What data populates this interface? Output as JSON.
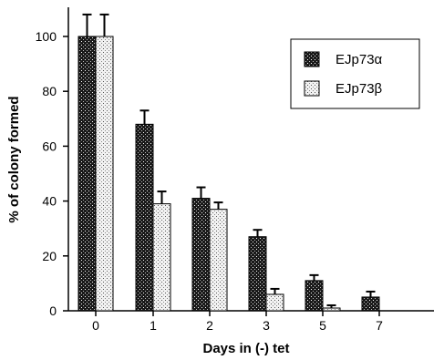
{
  "chart_data": {
    "type": "bar",
    "categories": [
      "0",
      "1",
      "2",
      "3",
      "5",
      "7"
    ],
    "series": [
      {
        "name": "EJp73α",
        "values": [
          100,
          68,
          41,
          27,
          11,
          5
        ],
        "errors": [
          8,
          5,
          4,
          2.5,
          2,
          2
        ],
        "pattern": "dark-dotted"
      },
      {
        "name": "EJp73β",
        "values": [
          100,
          39,
          37,
          6,
          1,
          0
        ],
        "errors": [
          8,
          4.5,
          2.5,
          2,
          1,
          0
        ],
        "pattern": "light-dotted"
      }
    ],
    "xlabel": "Days in (-) tet",
    "ylabel": "% of colony formed",
    "ylim": [
      0,
      100
    ],
    "yticks": [
      0,
      20,
      40,
      60,
      80,
      100
    ],
    "legend_placement": "top-right",
    "grid": false,
    "error_bars": true
  }
}
